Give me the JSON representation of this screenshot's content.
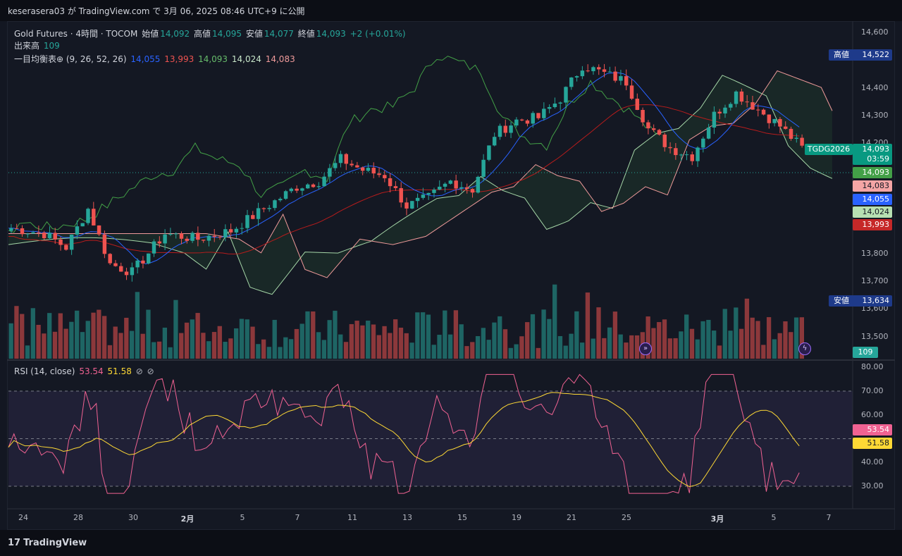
{
  "header": {
    "published_line": "keserasera03 が TradingView.com で 3月 06, 2025 08:46 UTC+9 に公開"
  },
  "legend": {
    "symbol_line": {
      "symbol": "Gold Futures · 4時間 · TOCOM",
      "open_label": "始値",
      "open": "14,092",
      "high_label": "高値",
      "high": "14,095",
      "low_label": "安値",
      "low": "14,077",
      "close_label": "終値",
      "close": "14,093",
      "change": "+2 (+0.01%)"
    },
    "volume_line": {
      "label": "出来高",
      "value": "109"
    },
    "ichimoku_line": {
      "label": "一目均衡表⊕ (9, 26, 52, 26)",
      "v1": "14,055",
      "v2": "13,993",
      "v3": "14,093",
      "v4": "14,024",
      "v5": "14,083"
    },
    "rsi_line": {
      "label": "RSI (14, close)",
      "rsi": "53.54",
      "ma": "51.58"
    }
  },
  "price_axis": {
    "ticks": [
      "14,600",
      "14,400",
      "14,300",
      "14,200",
      "13,800",
      "13,700",
      "13,600",
      "13,500"
    ],
    "high_badge": {
      "label": "高値",
      "value": "14,522"
    },
    "low_badge": {
      "label": "安値",
      "value": "13,634"
    },
    "symbol_badge": "TGDG2026",
    "last_price": "14,093",
    "countdown": "03:59",
    "labels": {
      "chikou": "14,093",
      "senkou_b": "14,083",
      "tenkan": "14,055",
      "senkou_a": "14,024",
      "kijun": "13,993",
      "volume": "109"
    }
  },
  "rsi_axis": {
    "ticks": [
      "80.00",
      "70.00",
      "60.00",
      "40.00",
      "30.00"
    ],
    "rsi_label": "53.54",
    "ma_label": "51.58"
  },
  "time_axis": [
    "24",
    "28",
    "30",
    "2月",
    "5",
    "7",
    "11",
    "13",
    "15",
    "19",
    "21",
    "25",
    "3月",
    "5",
    "7"
  ],
  "footer": {
    "brand": "TradingView",
    "logo": "17"
  },
  "colors": {
    "up": "#26a69a",
    "down": "#ef5350",
    "tenkan": "#2962ff",
    "kijun": "#b71c1c",
    "chikou": "#43a047",
    "span_a": "#a5d6a7",
    "span_b": "#ef9a9a",
    "rsi": "#f06292",
    "rsi_ma": "#fdd835"
  }
}
